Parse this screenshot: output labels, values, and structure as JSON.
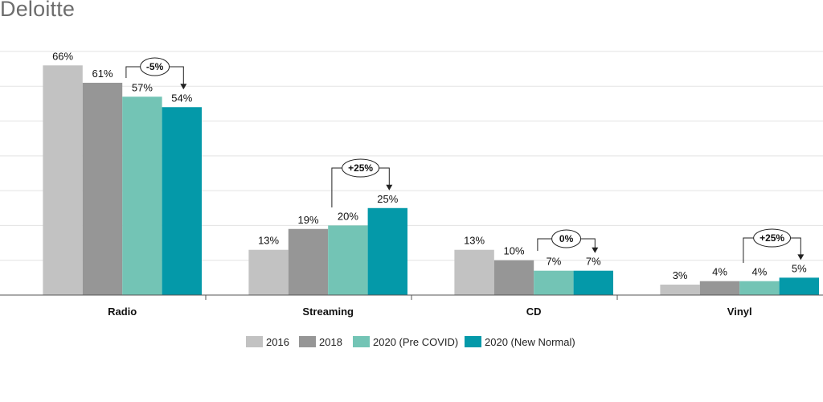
{
  "brand": "Deloitte",
  "chart_data": {
    "type": "bar",
    "categories": [
      "Radio",
      "Streaming",
      "CD",
      "Vinyl"
    ],
    "series": [
      {
        "name": "2016",
        "color": "#c2c2c2",
        "values": [
          66,
          13,
          13,
          3
        ],
        "labels": [
          "66%",
          "13%",
          "13%",
          "3%"
        ]
      },
      {
        "name": "2018",
        "color": "#969696",
        "values": [
          61,
          19,
          10,
          4
        ],
        "labels": [
          "61%",
          "19%",
          "10%",
          "4%"
        ]
      },
      {
        "name": "2020 (Pre COVID)",
        "color": "#73c4b5",
        "values": [
          57,
          20,
          7,
          4
        ],
        "labels": [
          "57%",
          "20%",
          "7%",
          "4%"
        ]
      },
      {
        "name": "2020 (New Normal)",
        "color": "#0499a9",
        "values": [
          54,
          25,
          7,
          5
        ],
        "labels": [
          "54%",
          "25%",
          "7%",
          "5%"
        ]
      }
    ],
    "changes": [
      {
        "category": "Radio",
        "label": "-5%"
      },
      {
        "category": "Streaming",
        "label": "+25%"
      },
      {
        "category": "CD",
        "label": "0%"
      },
      {
        "category": "Vinyl",
        "label": "+25%"
      }
    ],
    "ylim": [
      0,
      70
    ],
    "grid": true,
    "legend_position": "bottom"
  }
}
